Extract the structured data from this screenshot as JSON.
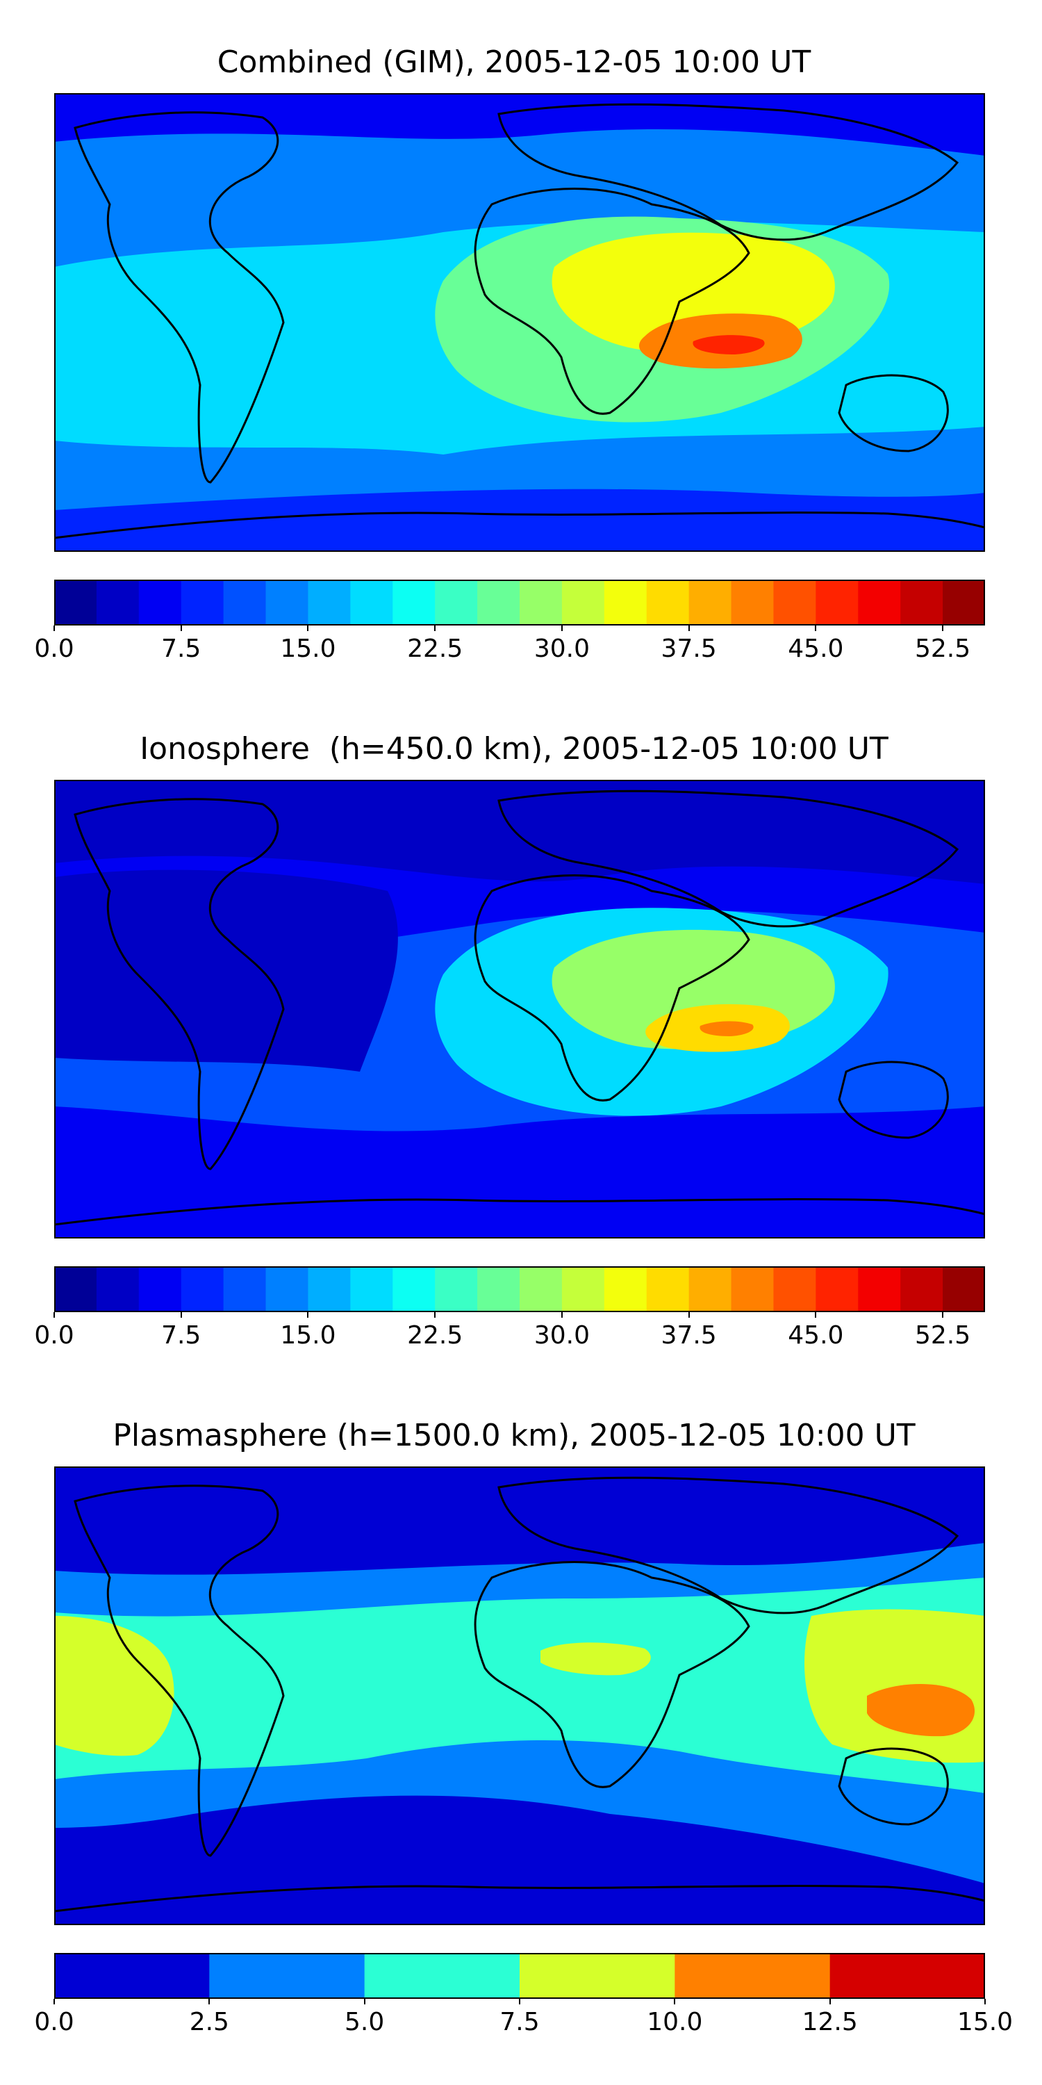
{
  "chart_data": [
    {
      "type": "heatmap",
      "title": "Combined (GIM), 2005-12-05 10:00 UT",
      "colorbar": {
        "min": 0.0,
        "max": 55.0,
        "step": 2.5,
        "tick_labels": [
          "0.0",
          "7.5",
          "15.0",
          "22.5",
          "30.0",
          "37.5",
          "45.0",
          "52.5"
        ],
        "tick_values": [
          0,
          7.5,
          15,
          22.5,
          30,
          37.5,
          45,
          52.5
        ]
      },
      "background_level": 12.5,
      "features": [
        {
          "name": "equatorial-band",
          "level": 17.5
        },
        {
          "name": "africa-indian-ocean-region",
          "level": 25.0
        },
        {
          "name": "east-africa-arabia-region",
          "level": 32.5
        },
        {
          "name": "indian-ocean-core",
          "level": 40.0
        },
        {
          "name": "peak-max",
          "level": 45.0
        },
        {
          "name": "north-polar-low",
          "level": 5.0
        },
        {
          "name": "south-polar-low",
          "level": 7.5
        }
      ]
    },
    {
      "type": "heatmap",
      "title": "Ionosphere  (h=450.0 km), 2005-12-05 10:00 UT",
      "colorbar": {
        "min": 0.0,
        "max": 55.0,
        "step": 2.5,
        "tick_labels": [
          "0.0",
          "7.5",
          "15.0",
          "22.5",
          "30.0",
          "37.5",
          "45.0",
          "52.5"
        ],
        "tick_values": [
          0,
          7.5,
          15,
          22.5,
          30,
          37.5,
          45,
          52.5
        ]
      },
      "background_level": 5.0,
      "features": [
        {
          "name": "equatorial-band",
          "level": 10.0
        },
        {
          "name": "africa-indian-ocean-region",
          "level": 17.5
        },
        {
          "name": "east-africa-arabia-region",
          "level": 27.5
        },
        {
          "name": "indian-ocean-core",
          "level": 35.0
        },
        {
          "name": "peak-max",
          "level": 40.0
        },
        {
          "name": "north-polar-low",
          "level": 2.5
        },
        {
          "name": "west-hemisphere-low",
          "level": 2.5
        }
      ]
    },
    {
      "type": "heatmap",
      "title": "Plasmasphere (h=1500.0 km), 2005-12-05 10:00 UT",
      "colorbar": {
        "min": 0.0,
        "max": 15.0,
        "step": 2.5,
        "tick_labels": [
          "0.0",
          "2.5",
          "5.0",
          "7.5",
          "10.0",
          "12.5",
          "15.0"
        ],
        "tick_values": [
          0,
          2.5,
          5,
          7.5,
          10,
          12.5,
          15
        ]
      },
      "background_level": 1.25,
      "features": [
        {
          "name": "mid-latitude-band",
          "level": 3.75
        },
        {
          "name": "equatorial-band",
          "level": 6.25
        },
        {
          "name": "east-pacific-patch",
          "level": 8.75
        },
        {
          "name": "africa-patch",
          "level": 8.75
        },
        {
          "name": "west-pacific-patch",
          "level": 8.75
        },
        {
          "name": "new-guinea-max",
          "level": 11.25
        }
      ]
    }
  ]
}
